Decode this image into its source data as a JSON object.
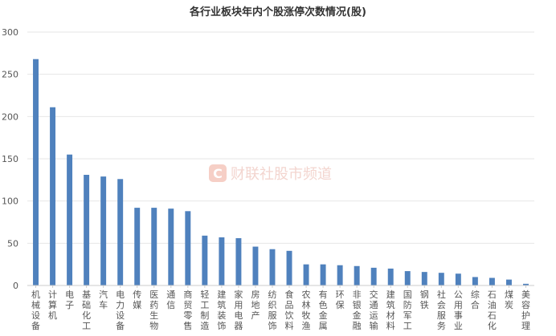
{
  "chart_data": {
    "type": "bar",
    "title": "各行业板块年内个股涨停次数情况(股)",
    "xlabel": "",
    "ylabel": "",
    "ylim": [
      0,
      300
    ],
    "yticks": [
      0,
      50,
      100,
      150,
      200,
      250,
      300
    ],
    "grid": true,
    "legend": "none",
    "categories": [
      "机械设备",
      "计算机",
      "电子",
      "基础化工",
      "汽车",
      "电力设备",
      "传媒",
      "医药生物",
      "通信",
      "商贸零售",
      "轻工制造",
      "建筑装饰",
      "家用电器",
      "房地产",
      "纺织服饰",
      "食品饮料",
      "农林牧渔",
      "有色金属",
      "环保",
      "非银金融",
      "交通运输",
      "建筑材料",
      "国防军工",
      "钢铁",
      "社会服务",
      "公用事业",
      "综合",
      "石油石化",
      "煤炭",
      "美容护理"
    ],
    "values": [
      268,
      211,
      155,
      131,
      129,
      126,
      92,
      92,
      91,
      88,
      59,
      57,
      56,
      46,
      43,
      41,
      25,
      25,
      24,
      23,
      21,
      20,
      17,
      16,
      15,
      14,
      10,
      9,
      7,
      2
    ],
    "bar_color": "#4f81bd"
  },
  "watermark": {
    "logo_letter": "C",
    "text": "财联社股市频道",
    "logo_color": "#f6cfc6"
  }
}
